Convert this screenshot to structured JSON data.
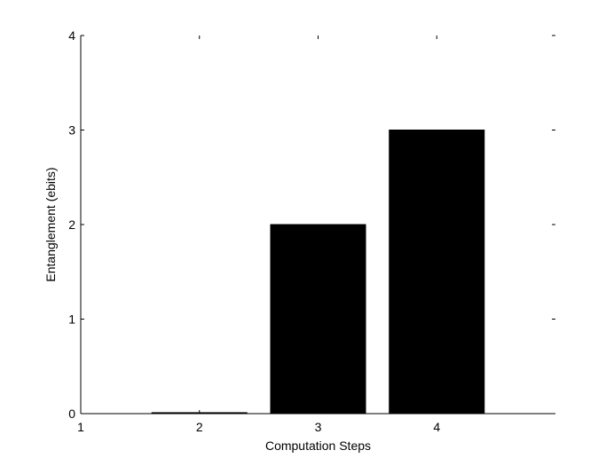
{
  "chart_data": {
    "type": "bar",
    "x": [
      2,
      3,
      4
    ],
    "values": [
      0.01,
      2,
      3
    ],
    "xlabel": "Computation Steps",
    "ylabel": "Entanglement (ebits)",
    "xlim": [
      1,
      5
    ],
    "ylim": [
      0,
      4
    ],
    "xticks": [
      "1",
      "2",
      "3",
      "4"
    ],
    "yticks": [
      "0",
      "1",
      "2",
      "3",
      "4"
    ],
    "bar_color": "#000000",
    "grid": false
  }
}
